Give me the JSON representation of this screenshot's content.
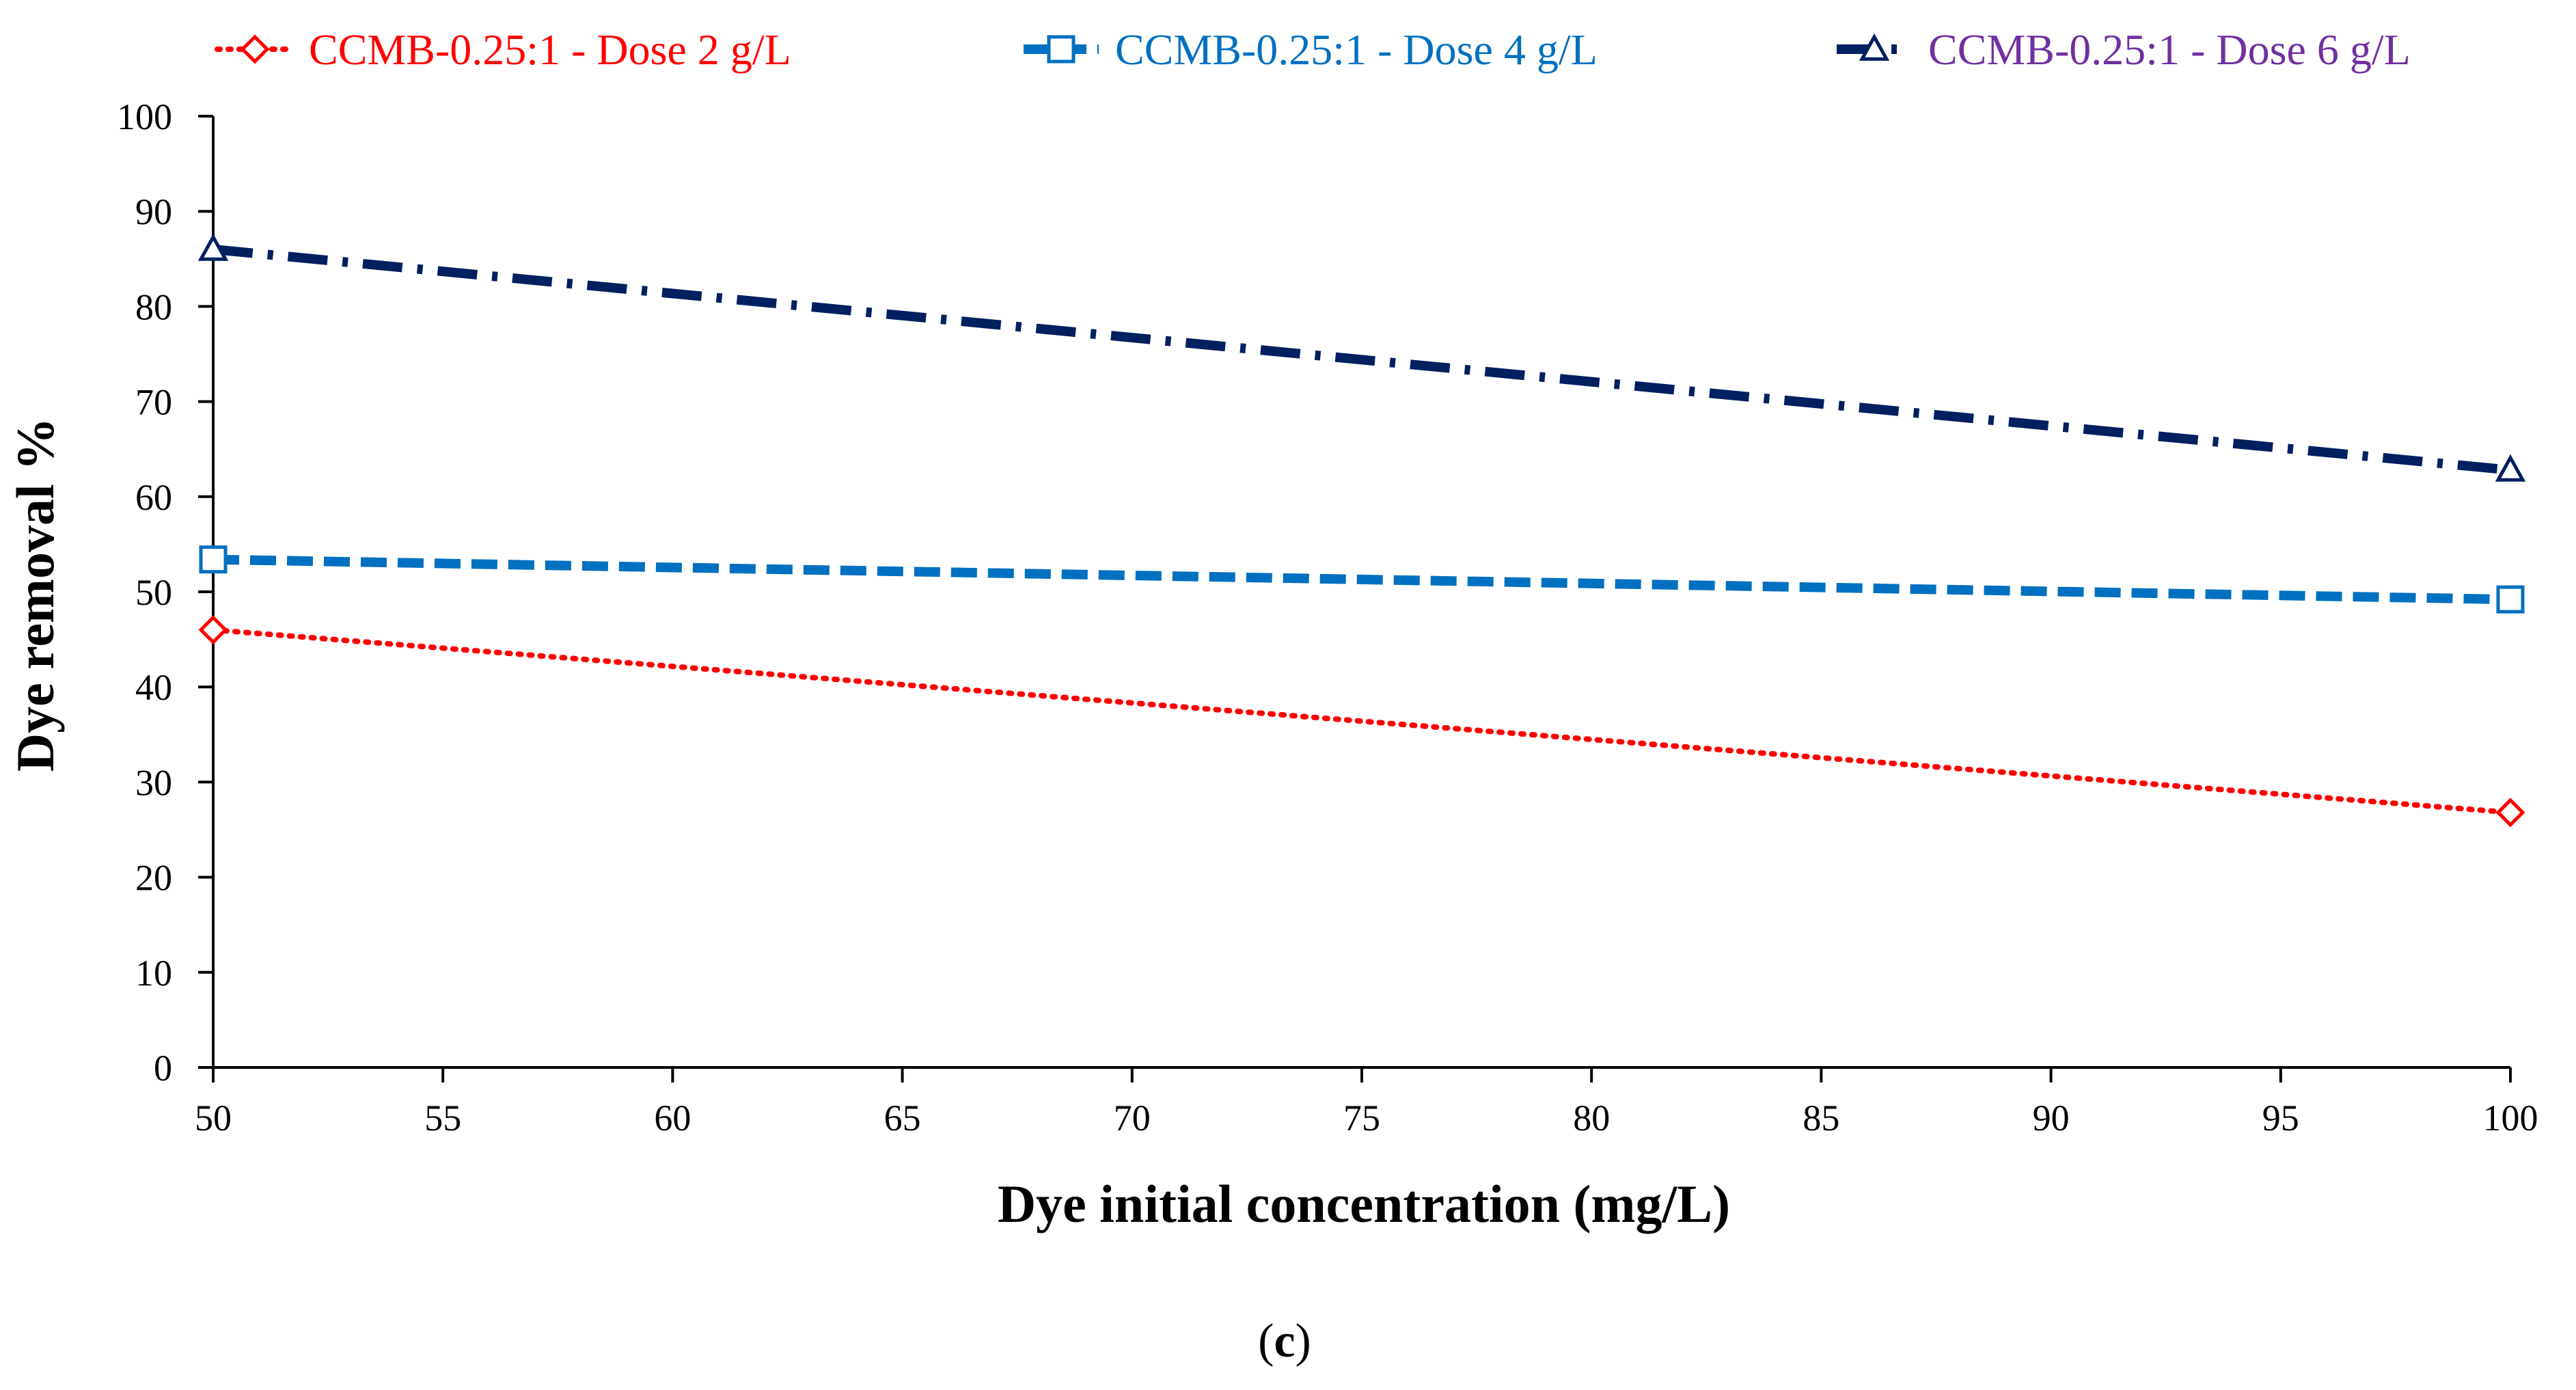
{
  "chart_data": {
    "type": "line",
    "title": "",
    "xlabel": "Dye initial concentration (mg/L)",
    "ylabel": "Dye removal %",
    "xlim": [
      50,
      100
    ],
    "ylim": [
      0,
      100
    ],
    "x_ticks": [
      50,
      55,
      60,
      65,
      70,
      75,
      80,
      85,
      90,
      95,
      100
    ],
    "y_ticks": [
      0,
      10,
      20,
      30,
      40,
      50,
      60,
      70,
      80,
      90,
      100
    ],
    "grid": false,
    "legend_position": "top",
    "series": [
      {
        "name": "CCMB-0.25:1 - Dose 2 g/L",
        "color": "#ff0000",
        "label_color": "#ff0000",
        "marker": "diamond",
        "line_style": "dotted",
        "x": [
          50,
          100
        ],
        "values": [
          46,
          26.8
        ]
      },
      {
        "name": "CCMB-0.25:1 - Dose 4 g/L",
        "color": "#0070c0",
        "label_color": "#0070c0",
        "marker": "square",
        "line_style": "dashed",
        "x": [
          50,
          100
        ],
        "values": [
          53.4,
          49.2
        ]
      },
      {
        "name": "CCMB-0.25:1 - Dose 6 g/L",
        "color": "#002060",
        "label_color": "#7030a0",
        "marker": "triangle",
        "line_style": "dash-dot",
        "x": [
          50,
          100
        ],
        "values": [
          86,
          62.8
        ]
      }
    ],
    "caption": {
      "open": "(",
      "letter": "c",
      "close": ")"
    }
  }
}
